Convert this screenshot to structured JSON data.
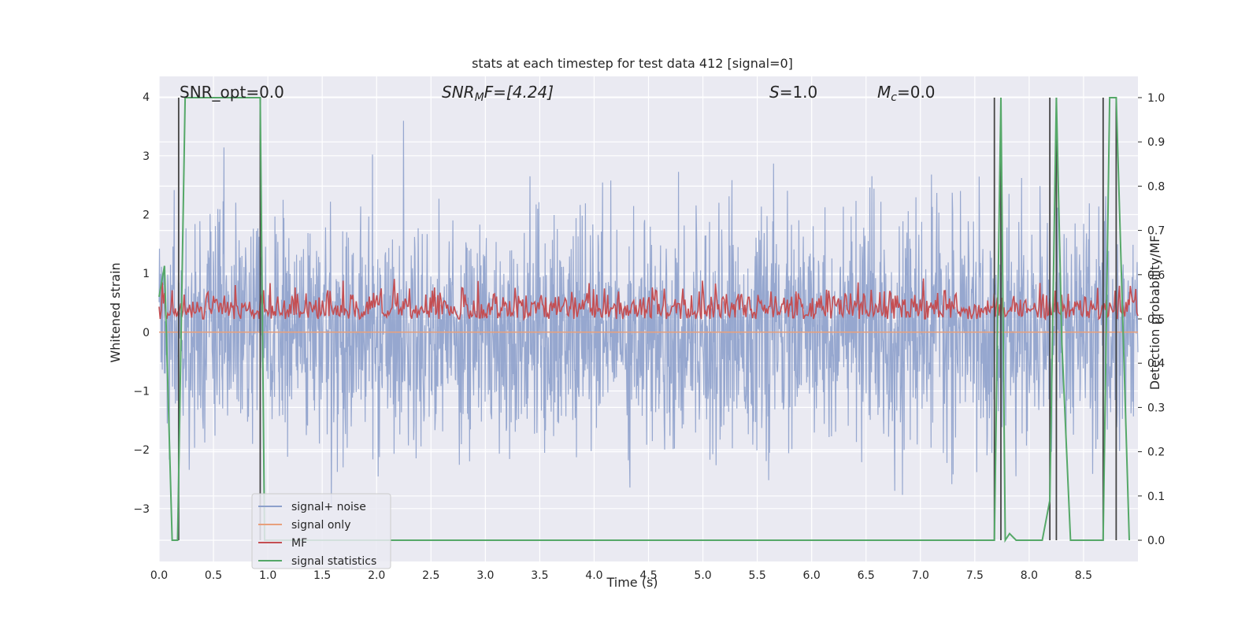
{
  "chart_data": {
    "type": "line",
    "title": "stats at each timestep for test data 412 [signal=0]",
    "xlabel": "Time (s)",
    "ylabel": "Whitened strain",
    "y2label": "Detection probability/MF",
    "xlim": [
      0.0,
      9.0
    ],
    "ylim": [
      -3.9,
      4.35
    ],
    "y2lim": [
      -0.048,
      1.048
    ],
    "xticks": [
      "0.0",
      "0.5",
      "1.0",
      "1.5",
      "2.0",
      "2.5",
      "3.0",
      "3.5",
      "4.0",
      "4.5",
      "5.0",
      "5.5",
      "6.0",
      "6.5",
      "7.0",
      "7.5",
      "8.0",
      "8.5"
    ],
    "yticks": [
      "−3",
      "−2",
      "−1",
      "0",
      "1",
      "2",
      "3",
      "4"
    ],
    "y2ticks": [
      "0.0",
      "0.1",
      "0.2",
      "0.3",
      "0.4",
      "0.5",
      "0.6",
      "0.7",
      "0.8",
      "0.9",
      "1.0"
    ],
    "grid": true,
    "legend_placement": "lower-left",
    "annotations": {
      "snr_opt": "SNR_opt=0.0",
      "snr_mf_prefix": "SNR",
      "snr_mf_sub": "M",
      "snr_mf_suffix": "F=[4.24]",
      "s_var": "S",
      "s_val": "=1.0",
      "mc_var": "M",
      "mc_sub": "c",
      "mc_val": "=0.0"
    },
    "series": [
      {
        "name": "signal+ noise",
        "color": "#8da0cb",
        "description": "dense noise, amplitude roughly -3.5 to 4.0 over 0-9 s"
      },
      {
        "name": "signal only",
        "color": "#e8a07c",
        "constant_value": 0.0
      },
      {
        "name": "MF",
        "color": "#c44e52",
        "description": "fluctuating 0.0 to 1.0, mean about 0.3"
      },
      {
        "name": "signal statistics",
        "color": "#55a868",
        "axis": "right",
        "x": [
          0.0,
          0.05,
          0.12,
          0.17,
          0.24,
          0.32,
          0.93,
          0.97,
          1.0,
          7.68,
          7.74,
          7.78,
          7.82,
          7.88,
          8.12,
          8.19,
          8.25,
          8.3,
          8.38,
          8.68,
          8.74,
          8.8,
          8.92
        ],
        "y": [
          0.55,
          0.62,
          0.0,
          0.0,
          1.0,
          1.0,
          1.0,
          0.0,
          0.0,
          0.0,
          1.0,
          0.0,
          0.015,
          0.0,
          0.0,
          0.09,
          1.0,
          0.45,
          0.0,
          0.0,
          1.0,
          1.0,
          0.0
        ]
      }
    ],
    "vertical_lines_x": [
      0.18,
      0.93,
      7.68,
      7.74,
      8.19,
      8.25,
      8.68,
      8.8
    ],
    "legend_entries": [
      {
        "label": "signal+ noise",
        "color": "#8da0cb"
      },
      {
        "label": "signal only",
        "color": "#e8a07c"
      },
      {
        "label": "MF",
        "color": "#c44e52"
      },
      {
        "label": "signal statistics",
        "color": "#55a868"
      }
    ],
    "colors": {
      "plot_background": "#eaeaf2",
      "grid": "#ffffff",
      "vline": "#444444"
    }
  }
}
